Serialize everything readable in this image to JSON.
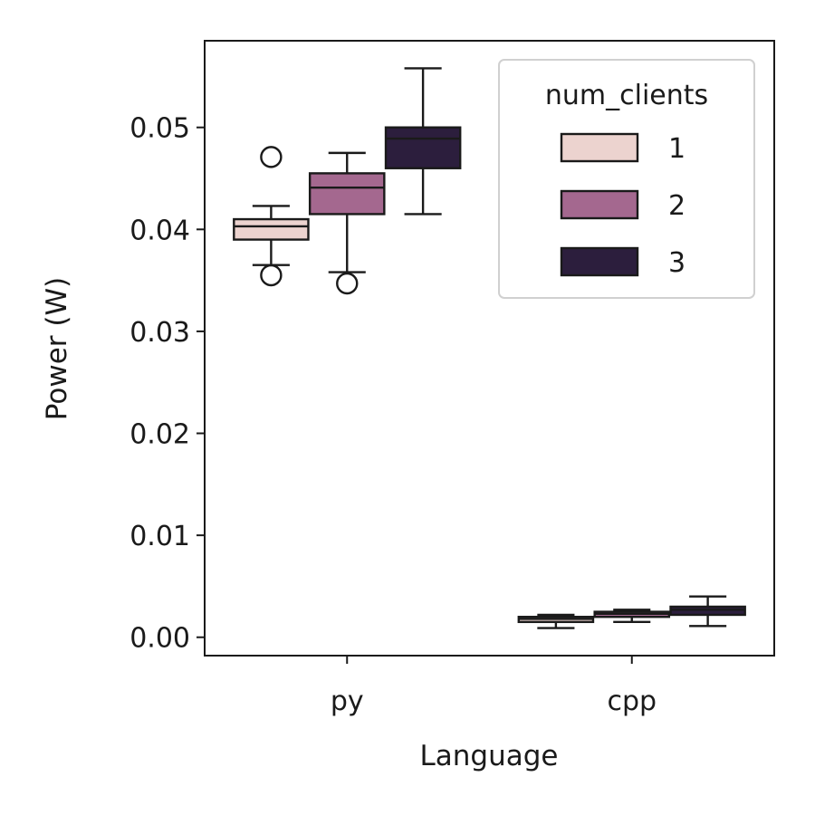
{
  "chart_data": {
    "type": "box",
    "title": "",
    "xlabel": "Language",
    "ylabel": "Power (W)",
    "categories": [
      "py",
      "cpp"
    ],
    "ylim": [
      -0.0018,
      0.0585
    ],
    "yticks": [
      "0.00",
      "0.01",
      "0.02",
      "0.03",
      "0.04",
      "0.05"
    ],
    "ytick_values": [
      0,
      0.01,
      0.02,
      0.03,
      0.04,
      0.05
    ],
    "grid": false,
    "legend": {
      "title": "num_clients",
      "placement": "upper-right",
      "entries": [
        "1",
        "2",
        "3"
      ]
    },
    "series": [
      {
        "name": "1",
        "color": "#ecd3cf",
        "boxes": [
          {
            "category": "py",
            "whislo": 0.0365,
            "q1": 0.039,
            "median": 0.0403,
            "q3": 0.041,
            "whishi": 0.0423,
            "fliers": [
              0.0355,
              0.0471
            ]
          },
          {
            "category": "cpp",
            "whislo": 0.0009,
            "q1": 0.0015,
            "median": 0.0018,
            "q3": 0.002,
            "whishi": 0.0022,
            "fliers": []
          }
        ]
      },
      {
        "name": "2",
        "color": "#a4688f",
        "boxes": [
          {
            "category": "py",
            "whislo": 0.0358,
            "q1": 0.0415,
            "median": 0.0441,
            "q3": 0.0455,
            "whishi": 0.0475,
            "fliers": [
              0.0347
            ]
          },
          {
            "category": "cpp",
            "whislo": 0.0015,
            "q1": 0.002,
            "median": 0.0023,
            "q3": 0.0025,
            "whishi": 0.0027,
            "fliers": []
          }
        ]
      },
      {
        "name": "3",
        "color": "#2c1e3d",
        "boxes": [
          {
            "category": "py",
            "whislo": 0.0415,
            "q1": 0.046,
            "median": 0.0489,
            "q3": 0.05,
            "whishi": 0.0558,
            "fliers": []
          },
          {
            "category": "cpp",
            "whislo": 0.0011,
            "q1": 0.0022,
            "median": 0.0027,
            "q3": 0.003,
            "whishi": 0.004,
            "fliers": []
          }
        ]
      }
    ]
  }
}
